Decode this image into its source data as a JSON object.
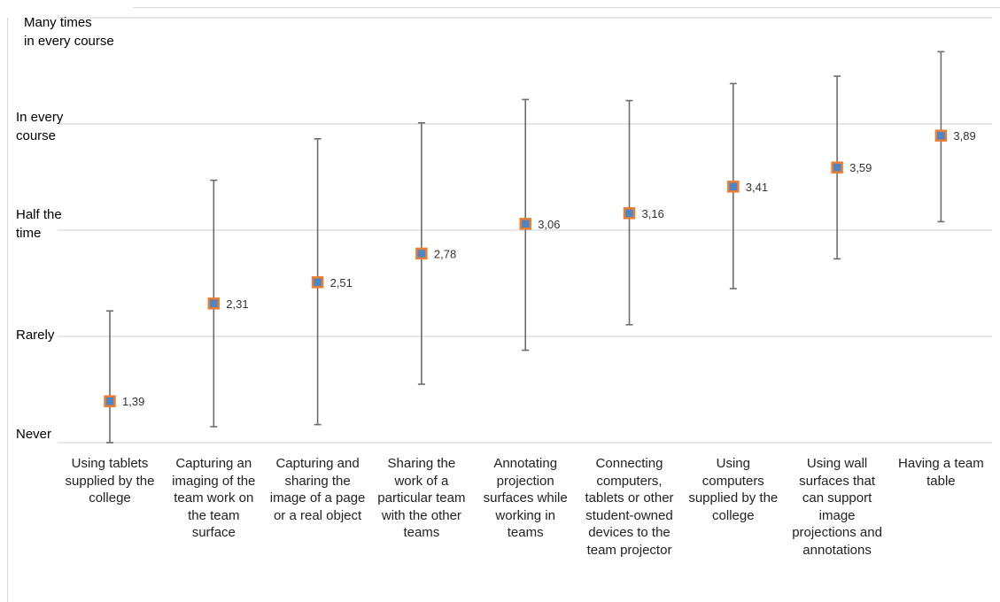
{
  "chart_data": {
    "type": "scatter",
    "categories": [
      "Using tablets\nsupplied by the\ncollege",
      "Capturing an\nimaging of the\nteam work on\nthe team\nsurface",
      "Capturing and\nsharing the\nimage of a page\nor a real object",
      "Sharing the\nwork of a\nparticular team\nwith the other\nteams",
      "Annotating\nprojection\nsurfaces while\nworking in\nteams",
      "Connecting\ncomputers,\ntablets or other\nstudent-owned\ndevices to the\nteam projector",
      "Using\ncomputers\nsupplied by the\ncollege",
      "Using wall\nsurfaces that\ncan support\nimage\nprojections and\nannotations",
      "Having a team\ntable"
    ],
    "values": [
      1.39,
      2.31,
      2.51,
      2.78,
      3.06,
      3.16,
      3.41,
      3.59,
      3.89
    ],
    "data_labels": [
      "1,39",
      "2,31",
      "2,51",
      "2,78",
      "3,06",
      "3,16",
      "3,41",
      "3,59",
      "3,89"
    ],
    "error_low": [
      1.0,
      1.15,
      1.17,
      1.55,
      1.87,
      2.11,
      2.45,
      2.73,
      3.08
    ],
    "error_high": [
      2.24,
      3.47,
      3.86,
      4.01,
      4.23,
      4.22,
      4.38,
      4.45,
      4.68
    ],
    "ylim": [
      1,
      5
    ],
    "ytick_values": [
      1,
      2,
      3,
      4,
      5
    ],
    "ytick_labels": [
      "Never",
      "Rarely",
      "Half the\ntime",
      "In every\ncourse",
      "Many times\nin every course"
    ],
    "grid": true,
    "colors": {
      "marker_fill": "#4a86c8",
      "marker_border": "#ed7d31",
      "error_bar": "#6d6d6d",
      "grid": "#d9d9d9"
    }
  }
}
